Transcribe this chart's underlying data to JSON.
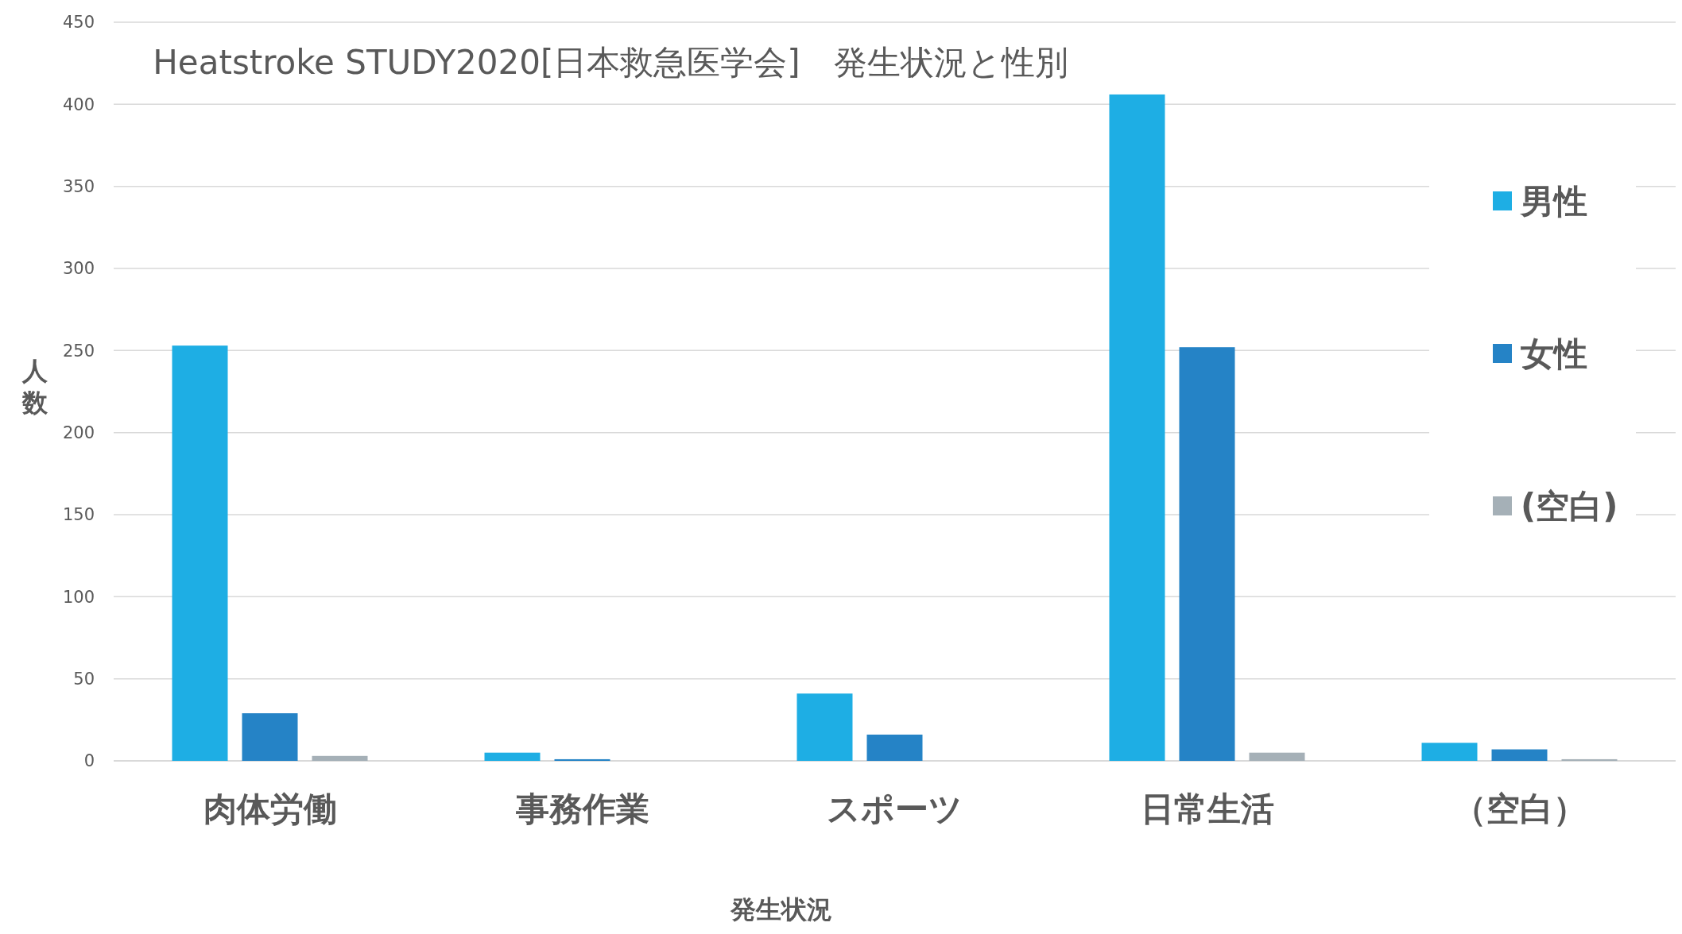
{
  "chart_data": {
    "type": "bar",
    "title": "Heatstroke STUDY2020[日本救急医学会]　発生状況と性別",
    "xlabel": "発生状況",
    "ylabel": "人数",
    "categories": [
      "肉体労働",
      "事務作業",
      "スポーツ",
      "日常生活",
      "（空白）"
    ],
    "series": [
      {
        "name": "男性",
        "color": "#1eaee4",
        "values": [
          253,
          5,
          41,
          406,
          11
        ]
      },
      {
        "name": "女性",
        "color": "#2583c6",
        "values": [
          29,
          1,
          16,
          252,
          7
        ]
      },
      {
        "name": "(空白)",
        "color": "#a5b0b7",
        "values": [
          3,
          0,
          0,
          5,
          1
        ]
      }
    ],
    "ylim": [
      0,
      450
    ],
    "yticks": [
      0,
      50,
      100,
      150,
      200,
      250,
      300,
      350,
      400,
      450
    ],
    "grid": "y",
    "legend": "right"
  }
}
